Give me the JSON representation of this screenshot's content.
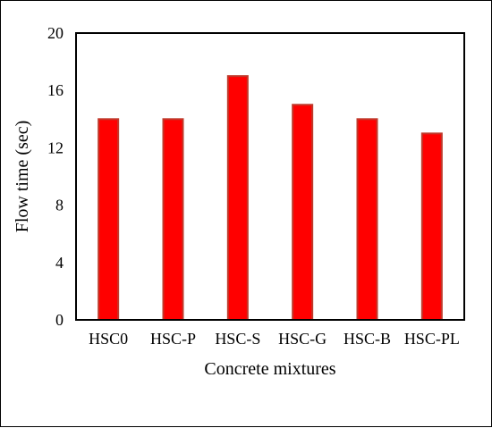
{
  "chart_data": {
    "type": "bar",
    "categories": [
      "HSC0",
      "HSC-P",
      "HSC-S",
      "HSC-G",
      "HSC-B",
      "HSC-PL"
    ],
    "values": [
      14,
      14,
      17,
      15,
      14,
      13
    ],
    "title": "",
    "xlabel": "Concrete mixtures",
    "ylabel": "Flow time (sec)",
    "ylim": [
      0,
      20
    ],
    "yticks": [
      0,
      4,
      8,
      12,
      16,
      20
    ],
    "grid": false,
    "bar_color": "#ff0000",
    "bar_edge_color": "#c0392b"
  }
}
